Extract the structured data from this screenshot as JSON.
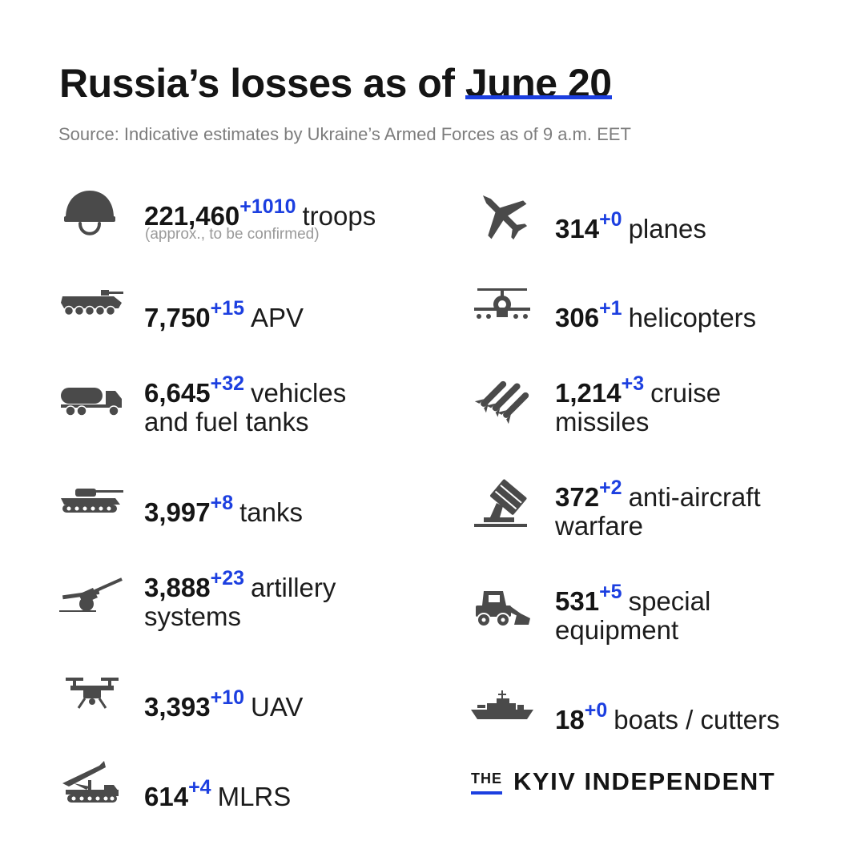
{
  "header": {
    "title_prefix": "Russia’s losses as of ",
    "title_date": "June 20",
    "source": "Source: Indicative estimates by Ukraine’s Armed Forces as of 9 a.m. EET"
  },
  "colors": {
    "accent": "#1c3fe0",
    "text": "#1c1c1c",
    "icon": "#4a4a4a",
    "muted": "#7d7d7d"
  },
  "items": [
    {
      "icon": "helmet-icon",
      "value": "221,460",
      "delta": "+1010",
      "line1": "troops",
      "line2": "",
      "note": "(approx., to be confirmed)"
    },
    {
      "icon": "apv-icon",
      "value": "7,750",
      "delta": "+15",
      "line1": "APV",
      "line2": "",
      "note": ""
    },
    {
      "icon": "fuel-truck-icon",
      "value": "6,645",
      "delta": "+32",
      "line1": "vehicles",
      "line2": "and fuel tanks",
      "note": ""
    },
    {
      "icon": "tank-icon",
      "value": "3,997",
      "delta": "+8",
      "line1": "tanks",
      "line2": "",
      "note": ""
    },
    {
      "icon": "artillery-icon",
      "value": "3,888",
      "delta": "+23",
      "line1": "artillery",
      "line2": "systems",
      "note": ""
    },
    {
      "icon": "drone-icon",
      "value": "3,393",
      "delta": "+10",
      "line1": "UAV",
      "line2": "",
      "note": ""
    },
    {
      "icon": "mlrs-icon",
      "value": "614",
      "delta": "+4",
      "line1": "MLRS",
      "line2": "",
      "note": ""
    },
    {
      "icon": "jet-icon",
      "value": "314",
      "delta": "+0",
      "line1": "planes",
      "line2": "",
      "note": ""
    },
    {
      "icon": "helicopter-icon",
      "value": "306",
      "delta": "+1",
      "line1": "helicopters",
      "line2": "",
      "note": ""
    },
    {
      "icon": "missile-icon",
      "value": "1,214",
      "delta": "+3",
      "line1": "cruise",
      "line2": "missiles",
      "note": ""
    },
    {
      "icon": "anti-aircraft-icon",
      "value": "372",
      "delta": "+2",
      "line1": "anti-aircraft",
      "line2": "warfare",
      "note": ""
    },
    {
      "icon": "loader-icon",
      "value": "531",
      "delta": "+5",
      "line1": "special",
      "line2": "equipment",
      "note": ""
    },
    {
      "icon": "warship-icon",
      "value": "18",
      "delta": "+0",
      "line1": "boats / cutters",
      "line2": "",
      "note": ""
    }
  ],
  "logo": {
    "the": "THE",
    "brand": "KYIV INDEPENDENT"
  }
}
